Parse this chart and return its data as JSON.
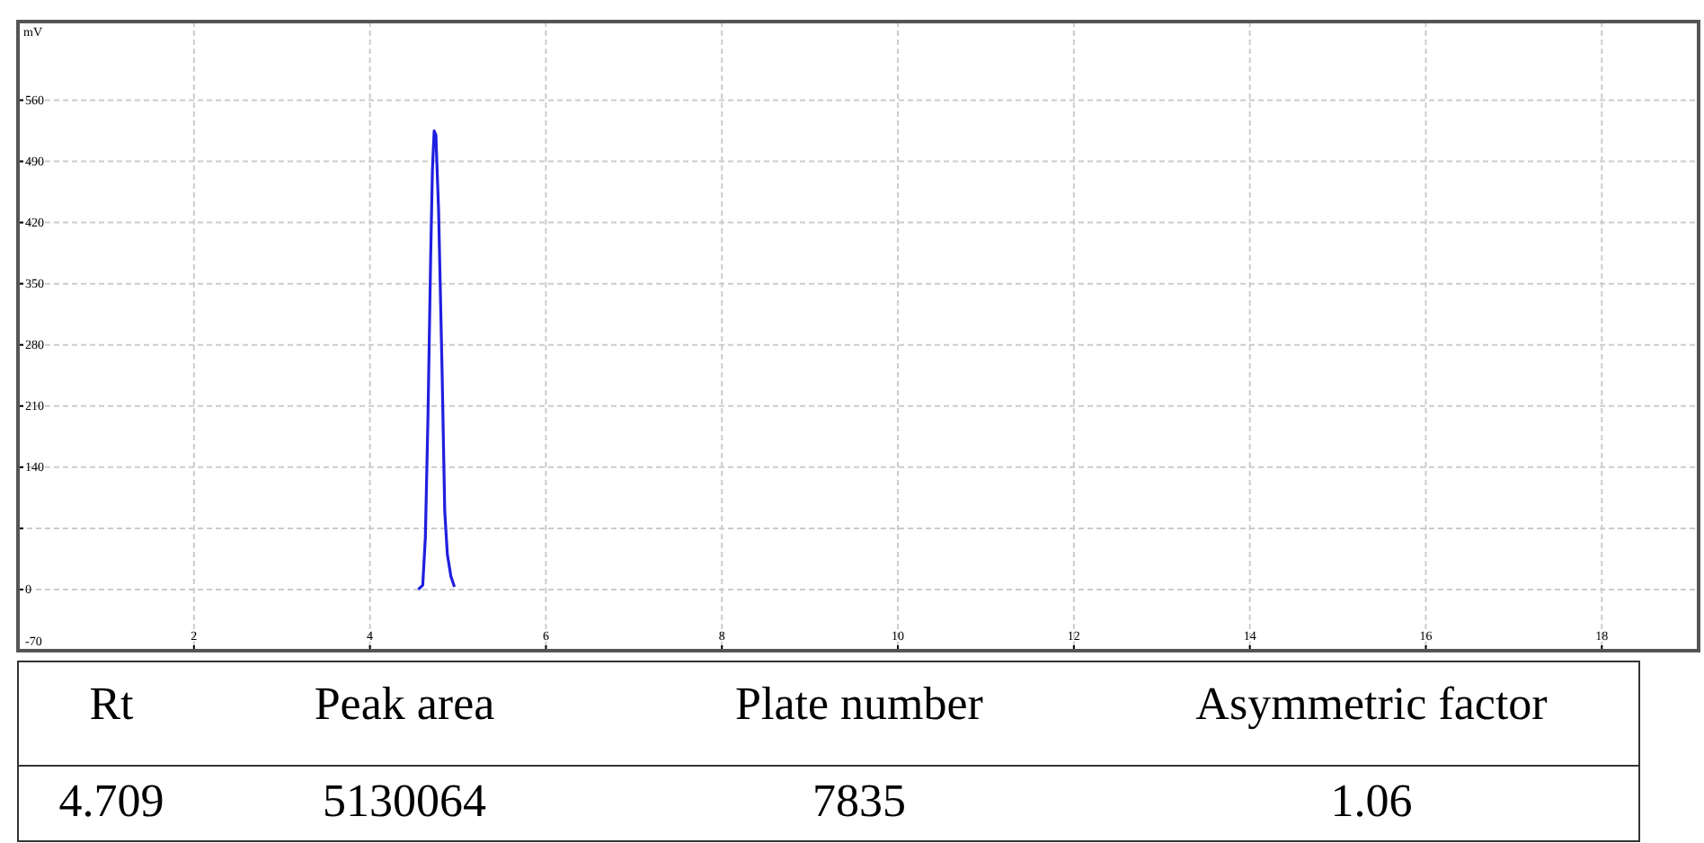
{
  "chart_data": {
    "type": "line",
    "ylabel": "mV",
    "x": [
      4.55,
      4.6,
      4.63,
      4.66,
      4.69,
      4.71,
      4.73,
      4.75,
      4.76,
      4.78,
      4.82,
      4.85,
      4.88,
      4.92,
      4.96
    ],
    "series": [
      {
        "color": "#1f1fe0",
        "values": [
          0,
          5,
          60,
          200,
          380,
          480,
          525,
          520,
          490,
          435,
          250,
          90,
          40,
          15,
          3
        ]
      }
    ],
    "xlim": [
      0,
      19.1
    ],
    "xticks": [
      2,
      4,
      6,
      8,
      10,
      12,
      14,
      16,
      18
    ],
    "ylim": [
      -70,
      650
    ],
    "yticks": [
      -70,
      0,
      {
        "value": 70,
        "label": null
      },
      140,
      210,
      280,
      350,
      420,
      490,
      560
    ],
    "grid": true,
    "marker": "none",
    "line_style": "solid",
    "annotations": [
      "Rt",
      "Peak area",
      "Plate number",
      "Asymmetric factor",
      "4.709",
      "5130064",
      "7835",
      "1.06"
    ]
  }
}
